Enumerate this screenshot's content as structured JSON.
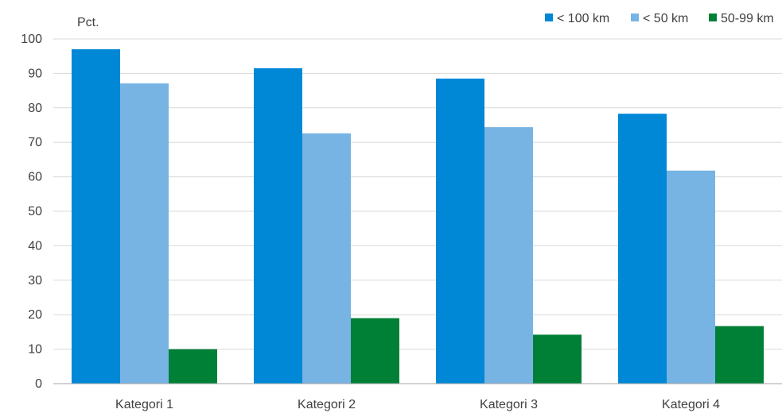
{
  "chart_data": {
    "type": "bar",
    "title": "",
    "ylabel": "Pct.",
    "xlabel": "",
    "categories": [
      "Kategori 1",
      "Kategori 2",
      "Kategori 3",
      "Kategori 4"
    ],
    "ylim": [
      0,
      100
    ],
    "yticks": [
      "0",
      "10",
      "20",
      "30",
      "40",
      "50",
      "60",
      "70",
      "80",
      "90",
      "100"
    ],
    "grid": true,
    "legend_position": "top-right",
    "series": [
      {
        "name": "< 100 km",
        "color": "#0088d6",
        "values": [
          97,
          91.5,
          88.5,
          78.3
        ]
      },
      {
        "name": "< 50 km",
        "color": "#77b4e4",
        "values": [
          87.1,
          72.6,
          74.4,
          61.8
        ]
      },
      {
        "name": "50-99 km",
        "color": "#008036",
        "values": [
          10,
          19,
          14.2,
          16.7
        ]
      }
    ]
  }
}
